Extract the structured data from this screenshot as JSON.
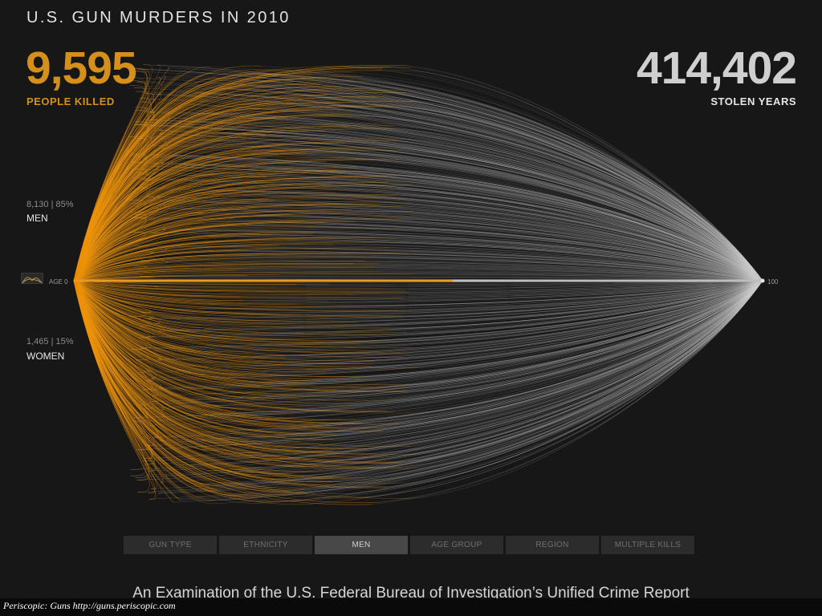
{
  "header": {
    "title": "U.S. GUN MURDERS IN 2010"
  },
  "kpis": {
    "people_killed": {
      "value": "9,595",
      "label": "PEOPLE KILLED"
    },
    "stolen_years": {
      "value": "414,402",
      "label": "STOLEN YEARS"
    }
  },
  "groups": {
    "men": {
      "stat": "8,130 | 85%",
      "label": "MEN"
    },
    "women": {
      "stat": "1,465 | 15%",
      "label": "WOMEN"
    }
  },
  "axis": {
    "start_label": "AGE 0",
    "end_label": "100"
  },
  "colors": {
    "background": "#171717",
    "lived": "#f0960f",
    "stolen": "#d2d2d2",
    "accent": "#d4901a"
  },
  "tabs": [
    {
      "label": "GUN TYPE",
      "active": false
    },
    {
      "label": "ETHNICITY",
      "active": false
    },
    {
      "label": "MEN",
      "active": true
    },
    {
      "label": "AGE GROUP",
      "active": false
    },
    {
      "label": "REGION",
      "active": false
    },
    {
      "label": "MULTIPLE KILLS",
      "active": false
    }
  ],
  "footer": {
    "subtitle": "An Examination of the U.S. Federal Bureau of Investigation’s Unified Crime Report",
    "caption": "Periscopic: Guns http://guns.periscopic.com"
  },
  "chart_data": {
    "type": "area",
    "total_killed": 9595,
    "total_stolen_years": 414402,
    "x_range": [
      0,
      100
    ],
    "series": [
      {
        "name": "MEN",
        "count": 8130,
        "share_percent": 85
      },
      {
        "name": "WOMEN",
        "count": 1465,
        "share_percent": 15
      }
    ]
  }
}
